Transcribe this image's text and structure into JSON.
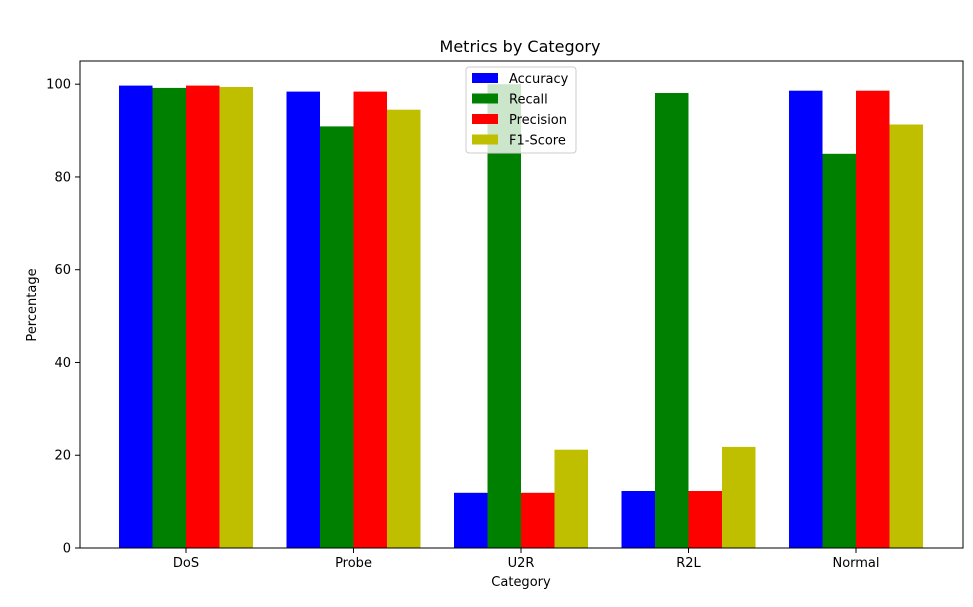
{
  "chart_data": {
    "type": "bar",
    "title": "Metrics by Category",
    "xlabel": "Category",
    "ylabel": "Percentage",
    "categories": [
      "DoS",
      "Probe",
      "U2R",
      "R2L",
      "Normal"
    ],
    "ylim": [
      0,
      105
    ],
    "yticks": [
      0,
      20,
      40,
      60,
      80,
      100
    ],
    "grid": false,
    "legend_position": "top-center",
    "series": [
      {
        "name": "Accuracy",
        "color": "#0000ff",
        "values": [
          99.7,
          98.4,
          11.9,
          12.3,
          98.6
        ]
      },
      {
        "name": "Recall",
        "color": "#008000",
        "values": [
          99.2,
          90.9,
          100.0,
          98.1,
          85.0
        ]
      },
      {
        "name": "Precision",
        "color": "#ff0000",
        "values": [
          99.7,
          98.4,
          11.9,
          12.3,
          98.6
        ]
      },
      {
        "name": "F1-Score",
        "color": "#bfbf00",
        "values": [
          99.4,
          94.5,
          21.2,
          21.8,
          91.3
        ]
      }
    ]
  }
}
